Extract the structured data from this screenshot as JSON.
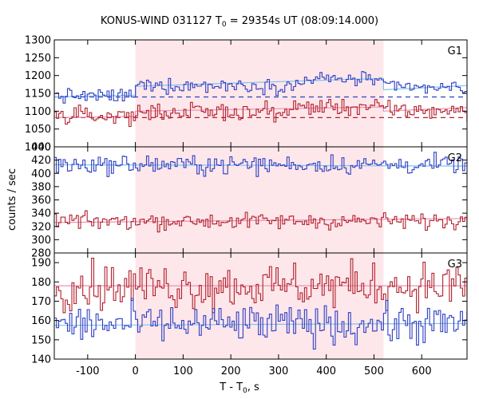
{
  "chart_data": {
    "type": "line",
    "title": {
      "main": "KONUS-WIND 031127 T",
      "sub": "0",
      "rest": " = 29354s UT (08:09:14.000)"
    },
    "xlabel": {
      "main": "T - T",
      "sub": "0",
      "rest": ", s"
    },
    "ylabel": "counts / sec",
    "xlim": [
      -170,
      695
    ],
    "xticks": [
      -100,
      0,
      100,
      200,
      300,
      400,
      500,
      600
    ],
    "xtick_labels": [
      "-100",
      "0",
      "100",
      "200",
      "300",
      "400",
      "500",
      "600"
    ],
    "highlight_interval": [
      0,
      520
    ],
    "colors": {
      "highlight": "#fde7ea",
      "blue": "#2e3fc4",
      "red": "#b2202e",
      "fit_blue": "#7fc3ec",
      "fit_red": "#e993b5"
    },
    "panels": [
      {
        "label": "G1",
        "ylim": [
          1000,
          1300
        ],
        "yticks": [
          1000,
          1050,
          1100,
          1150,
          1200,
          1250,
          1300
        ],
        "ytick_labels": [
          "1000",
          "1050",
          "1100",
          "1150",
          "1200",
          "1250",
          "1300"
        ],
        "series": [
          {
            "color": "blue",
            "levels": [
              [
                -170,
                0,
                1143
              ],
              [
                0,
                350,
                1172
              ],
              [
                350,
                520,
                1190
              ],
              [
                520,
                695,
                1165
              ]
            ],
            "noise": 10,
            "background": 1140,
            "fit": [
              [
                -170,
                1140
              ],
              [
                0,
                1145
              ],
              [
                0,
                1170
              ],
              [
                520,
                1192
              ],
              [
                520,
                1160
              ],
              [
                695,
                1172
              ]
            ]
          },
          {
            "color": "red",
            "levels": [
              [
                -170,
                0,
                1087
              ],
              [
                0,
                330,
                1098
              ],
              [
                330,
                520,
                1112
              ],
              [
                520,
                695,
                1102
              ]
            ],
            "noise": 12,
            "background": 1082,
            "fit": [
              [
                -170,
                1082
              ],
              [
                0,
                1085
              ],
              [
                0,
                1100
              ],
              [
                520,
                1112
              ],
              [
                520,
                1100
              ],
              [
                695,
                1110
              ]
            ]
          }
        ]
      },
      {
        "label": "G2",
        "ylim": [
          280,
          440
        ],
        "yticks": [
          280,
          300,
          320,
          340,
          360,
          380,
          400,
          420,
          440
        ],
        "ytick_labels": [
          "280",
          "300",
          "320",
          "340",
          "360",
          "380",
          "400",
          "420",
          "440"
        ],
        "series": [
          {
            "color": "blue",
            "levels": [
              [
                -170,
                695,
                413
              ]
            ],
            "noise": 7,
            "fit": [
              [
                -170,
                413
              ],
              [
                695,
                411
              ]
            ]
          },
          {
            "color": "red",
            "levels": [
              [
                -170,
                695,
                328
              ]
            ],
            "noise": 6,
            "fit": [
              [
                -170,
                326
              ],
              [
                695,
                332
              ]
            ]
          }
        ]
      },
      {
        "label": "G3",
        "ylim": [
          140,
          195
        ],
        "yticks": [
          140,
          150,
          160,
          170,
          180,
          190
        ],
        "ytick_labels": [
          "140",
          "150",
          "160",
          "170",
          "180",
          "190"
        ],
        "series": [
          {
            "color": "red",
            "levels": [
              [
                -170,
                695,
                178
              ]
            ],
            "noise": 6,
            "fit": [
              [
                -170,
                178
              ],
              [
                695,
                178
              ]
            ]
          },
          {
            "color": "blue",
            "levels": [
              [
                -170,
                695,
                158
              ]
            ],
            "noise": 5,
            "fit": [
              [
                -170,
                157.5
              ],
              [
                695,
                158.5
              ]
            ]
          }
        ]
      }
    ]
  }
}
